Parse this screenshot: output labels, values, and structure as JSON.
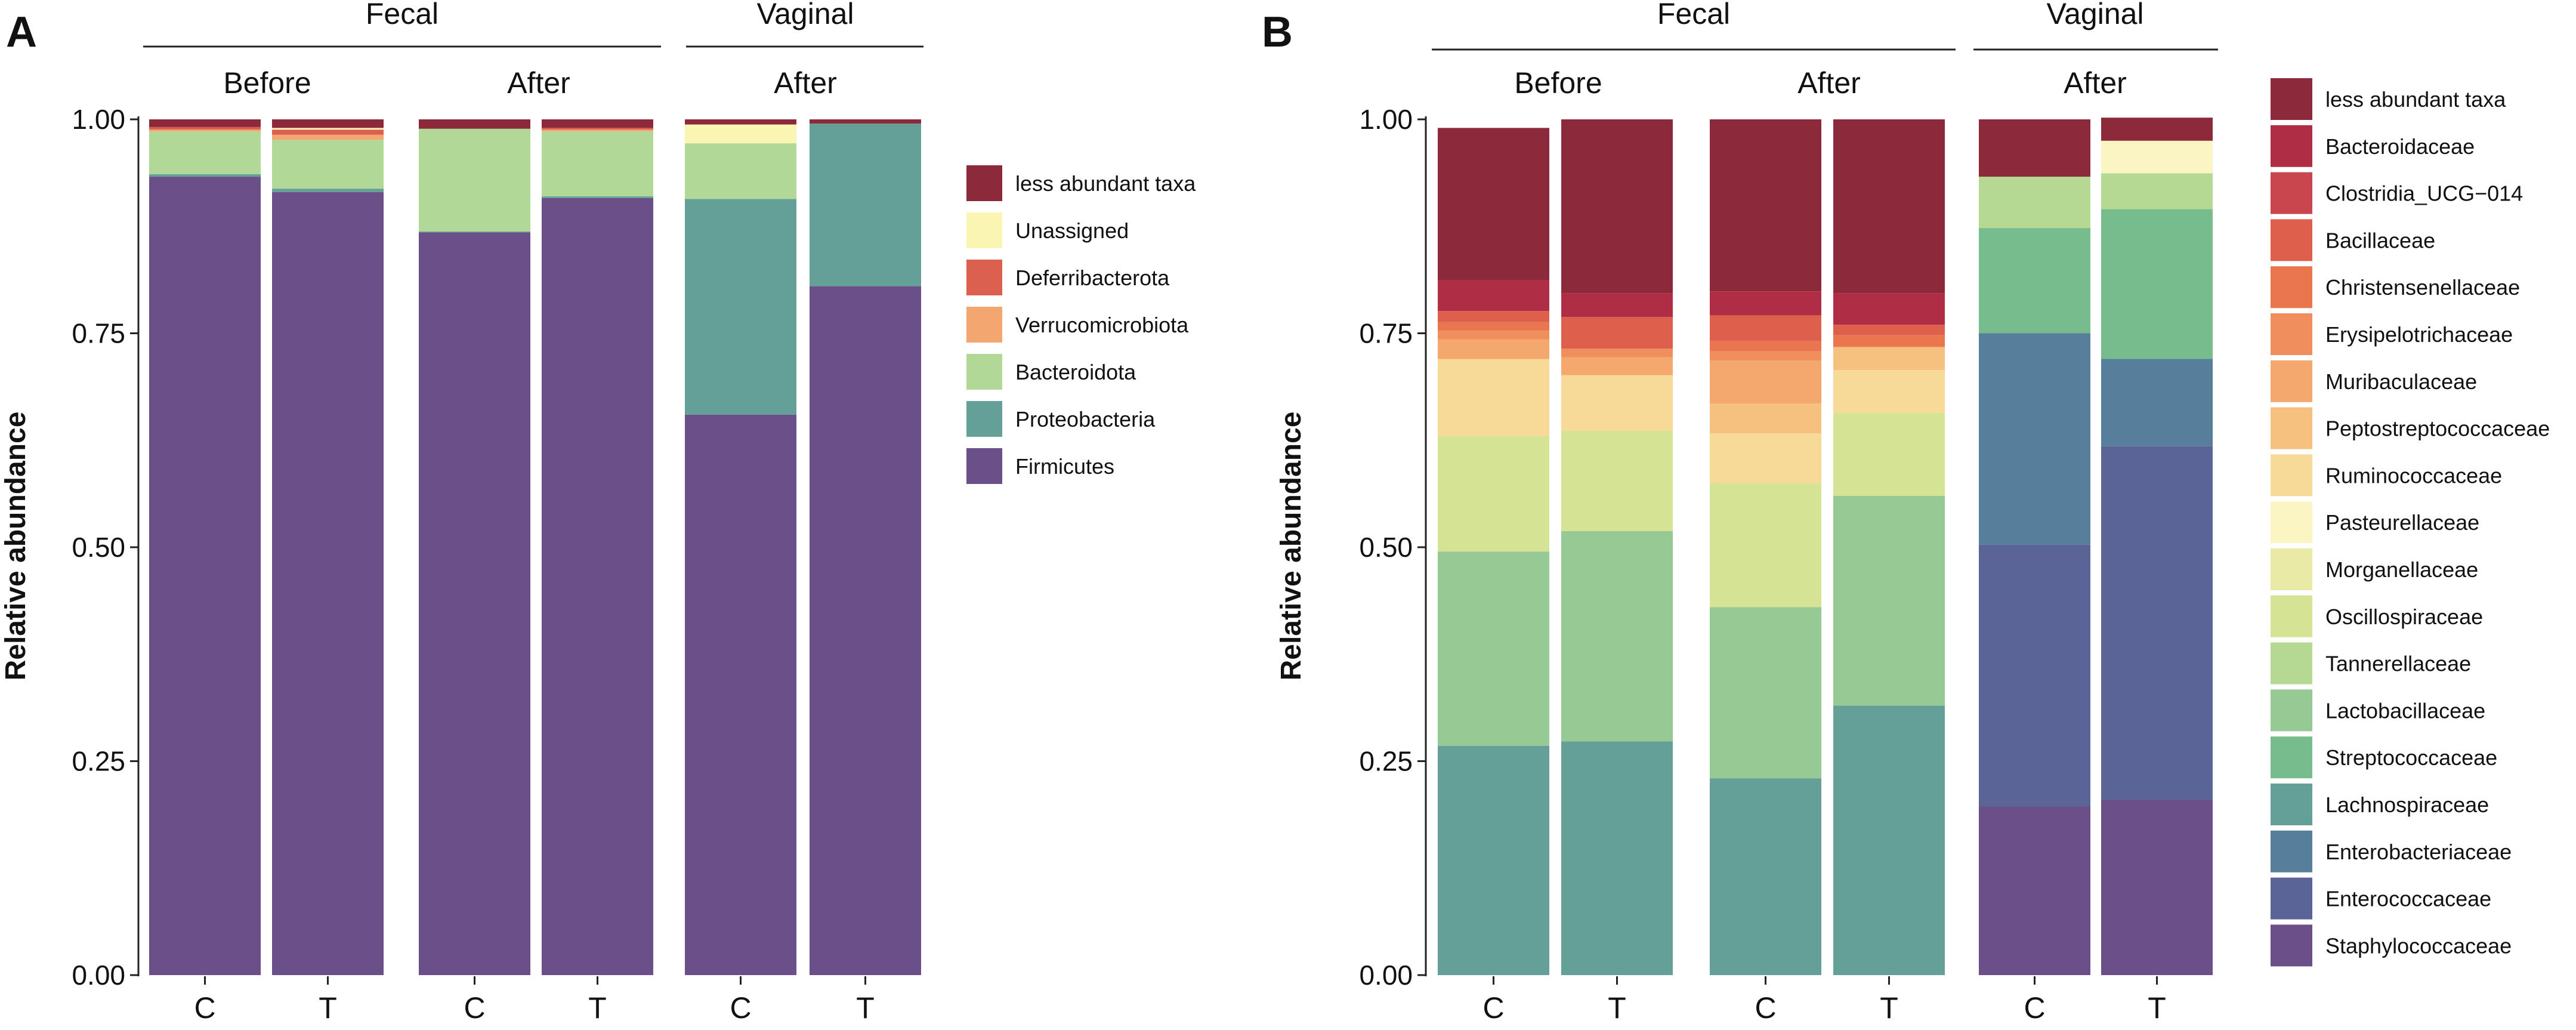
{
  "chart_data": [
    {
      "panel": "A",
      "type": "stacked-bar",
      "ylabel": "Relative abundance",
      "ylim": [
        0,
        1
      ],
      "yticks": [
        "0.00",
        "0.25",
        "0.50",
        "0.75",
        "1.00"
      ],
      "site_headers": [
        {
          "label": "Fecal",
          "bars": [
            0,
            3
          ]
        },
        {
          "label": "Vaginal",
          "bars": [
            4,
            5
          ]
        }
      ],
      "time_headers": [
        {
          "label": "Before",
          "bars": [
            0,
            1
          ]
        },
        {
          "label": "After",
          "bars": [
            2,
            3
          ]
        },
        {
          "label": "After",
          "bars": [
            4,
            5
          ]
        }
      ],
      "categories": [
        "C",
        "T",
        "C",
        "T",
        "C",
        "T"
      ],
      "legend": [
        "less abundant taxa",
        "Unassigned",
        "Deferribacterota",
        "Verrucomicrobiota",
        "Bacteroidota",
        "Proteobacteria",
        "Firmicutes"
      ],
      "colors": {
        "less abundant taxa": "#8c2a3c",
        "Unassigned": "#faf5b3",
        "Deferribacterota": "#dc6050",
        "Verrucomicrobiota": "#f3a670",
        "Bacteroidota": "#b2d898",
        "Proteobacteria": "#649f98",
        "Firmicutes": "#6a4f88"
      },
      "series": [
        {
          "name": "Firmicutes",
          "values": [
            0.933,
            0.915,
            0.868,
            0.908,
            0.655,
            0.805
          ]
        },
        {
          "name": "Proteobacteria",
          "values": [
            0.003,
            0.004,
            0.001,
            0.002,
            0.252,
            0.19
          ]
        },
        {
          "name": "Bacteroidota",
          "values": [
            0.05,
            0.057,
            0.12,
            0.076,
            0.065,
            0.0
          ]
        },
        {
          "name": "Verrucomicrobiota",
          "values": [
            0.002,
            0.006,
            0.0,
            0.002,
            0.0,
            0.0
          ]
        },
        {
          "name": "Deferribacterota",
          "values": [
            0.003,
            0.006,
            0.0,
            0.002,
            0.0,
            0.0
          ]
        },
        {
          "name": "Unassigned",
          "values": [
            0.0,
            0.002,
            0.0,
            0.0,
            0.022,
            0.0
          ]
        },
        {
          "name": "less abundant taxa",
          "values": [
            0.009,
            0.01,
            0.011,
            0.01,
            0.006,
            0.005
          ]
        }
      ]
    },
    {
      "panel": "B",
      "type": "stacked-bar",
      "ylabel": "Relative abundance",
      "ylim": [
        0,
        1
      ],
      "yticks": [
        "0.00",
        "0.25",
        "0.50",
        "0.75",
        "1.00"
      ],
      "site_headers": [
        {
          "label": "Fecal",
          "bars": [
            0,
            3
          ]
        },
        {
          "label": "Vaginal",
          "bars": [
            4,
            5
          ]
        }
      ],
      "time_headers": [
        {
          "label": "Before",
          "bars": [
            0,
            1
          ]
        },
        {
          "label": "After",
          "bars": [
            2,
            3
          ]
        },
        {
          "label": "After",
          "bars": [
            4,
            5
          ]
        }
      ],
      "categories": [
        "C",
        "T",
        "C",
        "T",
        "C",
        "T"
      ],
      "legend": [
        "less abundant taxa",
        "Bacteroidaceae",
        "Clostridia_UCG−014",
        "Bacillaceae",
        "Christensenellaceae",
        "Erysipelotrichaceae",
        "Muribaculaceae",
        "Peptostreptococcaceae",
        "Ruminococcaceae",
        "Pasteurellaceae",
        "Morganellaceae",
        "Oscillospiraceae",
        "Tannerellaceae",
        "Lactobacillaceae",
        "Streptococcaceae",
        "Lachnospiraceae",
        "Enterobacteriaceae",
        "Enterococcaceae",
        "Staphylococcaceae"
      ],
      "colors": {
        "less abundant taxa": "#8c2a3c",
        "Bacteroidaceae": "#b02d46",
        "Clostridia_UCG−014": "#c9464e",
        "Bacillaceae": "#de5f4c",
        "Christensenellaceae": "#ea7650",
        "Erysipelotrichaceae": "#f08e5e",
        "Muribaculaceae": "#f4a86e",
        "Peptostreptococcaceae": "#f6c17f",
        "Ruminococcaceae": "#f7da98",
        "Pasteurellaceae": "#faf5c2",
        "Morganellaceae": "#e9eaa6",
        "Oscillospiraceae": "#d5e394",
        "Tannerellaceae": "#b5d992",
        "Lactobacillaceae": "#96c994",
        "Streptococcaceae": "#76bc8c",
        "Lachnospiraceae": "#649f98",
        "Enterobacteriaceae": "#577e9b",
        "Enterococcaceae": "#5a6497",
        "Staphylococcaceae": "#6a4f88"
      },
      "series": [
        {
          "name": "Staphylococcaceae",
          "values": [
            0.0,
            0.0,
            0.0,
            0.0,
            0.197,
            0.205
          ]
        },
        {
          "name": "Enterococcaceae",
          "values": [
            0.0,
            0.0,
            0.0,
            0.0,
            0.306,
            0.413
          ]
        },
        {
          "name": "Enterobacteriaceae",
          "values": [
            0.0,
            0.0,
            0.0,
            0.0,
            0.247,
            0.102
          ]
        },
        {
          "name": "Lachnospiraceae",
          "values": [
            0.268,
            0.273,
            0.23,
            0.315,
            0.0,
            0.0
          ]
        },
        {
          "name": "Streptococcaceae",
          "values": [
            0.0,
            0.0,
            0.0,
            0.0,
            0.123,
            0.175
          ]
        },
        {
          "name": "Lactobacillaceae",
          "values": [
            0.227,
            0.246,
            0.2,
            0.245,
            0.0,
            0.0
          ]
        },
        {
          "name": "Tannerellaceae",
          "values": [
            0.0,
            0.0,
            0.0,
            0.0,
            0.06,
            0.042
          ]
        },
        {
          "name": "Oscillospiraceae",
          "values": [
            0.135,
            0.117,
            0.145,
            0.097,
            0.0,
            0.0
          ]
        },
        {
          "name": "Morganellaceae",
          "values": [
            0.0,
            0.0,
            0.0,
            0.0,
            0.0,
            0.0
          ]
        },
        {
          "name": "Pasteurellaceae",
          "values": [
            0.0,
            0.0,
            0.0,
            0.0,
            0.0,
            0.038
          ]
        },
        {
          "name": "Ruminococcaceae",
          "values": [
            0.09,
            0.065,
            0.058,
            0.05,
            0.0,
            0.0
          ]
        },
        {
          "name": "Peptostreptococcaceae",
          "values": [
            0.0,
            0.0,
            0.035,
            0.027,
            0.0,
            0.0
          ]
        },
        {
          "name": "Muribaculaceae",
          "values": [
            0.023,
            0.021,
            0.05,
            0.0,
            0.0,
            0.0
          ]
        },
        {
          "name": "Erysipelotrichaceae",
          "values": [
            0.01,
            0.01,
            0.011,
            0.0,
            0.0,
            0.0
          ]
        },
        {
          "name": "Christensenellaceae",
          "values": [
            0.01,
            0.0,
            0.012,
            0.014,
            0.0,
            0.0
          ]
        },
        {
          "name": "Bacillaceae",
          "values": [
            0.013,
            0.037,
            0.03,
            0.012,
            0.0,
            0.0
          ]
        },
        {
          "name": "Clostridia_UCG−014",
          "values": [
            0.0,
            0.0,
            0.0,
            0.0,
            0.0,
            0.0
          ]
        },
        {
          "name": "Bacteroidaceae",
          "values": [
            0.036,
            0.028,
            0.028,
            0.037,
            0.0,
            0.0
          ]
        },
        {
          "name": "less abundant taxa",
          "values": [
            0.178,
            0.203,
            0.201,
            0.203,
            0.067,
            0.027
          ]
        }
      ]
    }
  ]
}
